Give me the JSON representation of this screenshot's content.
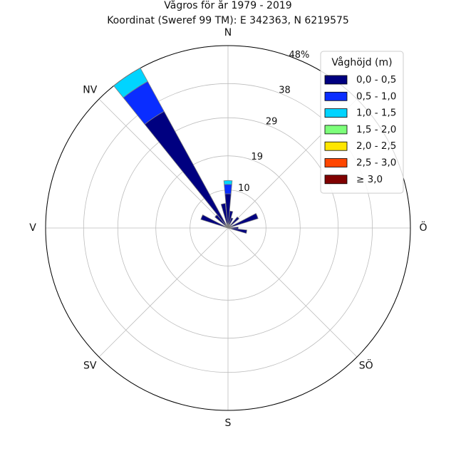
{
  "chart_data": {
    "type": "windrose",
    "title": "Vågros för år 1979 - 2019",
    "subtitle": "Koordinat (Sweref 99 TM): E 342363, N 6219575",
    "directions": [
      {
        "label": "N",
        "angle": 0
      },
      {
        "label": "NV",
        "angle": 315
      },
      {
        "label": "Ö",
        "angle": 90
      },
      {
        "label": "SÖ",
        "angle": 135
      },
      {
        "label": "S",
        "angle": 180
      },
      {
        "label": "SV",
        "angle": 225
      },
      {
        "label": "V",
        "angle": 270
      }
    ],
    "radial_ticks": [
      "10",
      "19",
      "29",
      "38",
      "48%"
    ],
    "radial_tick_values": [
      10,
      19,
      29,
      38,
      48
    ],
    "rmax": 48,
    "grid": true,
    "legend": {
      "title": "Våghöjd (m)",
      "position": "top-right",
      "entries": [
        {
          "label": "0,0 - 0,5",
          "color": "#000080"
        },
        {
          "label": "0,5 - 1,0",
          "color": "#0a2dff"
        },
        {
          "label": "1,0 - 1,5",
          "color": "#00d4ff"
        },
        {
          "label": "1,5 - 2,0",
          "color": "#7dff7a"
        },
        {
          "label": "2,0 - 2,5",
          "color": "#ffe600"
        },
        {
          "label": "2,5 - 3,0",
          "color": "#ff4600"
        },
        {
          "label": "≥ 3,0",
          "color": "#800000"
        }
      ]
    },
    "sector_width_deg": 11.25,
    "sectors": [
      {
        "direction_deg": 0,
        "cumulative": [
          9.0,
          11.5,
          12.5
        ]
      },
      {
        "direction_deg": 11.25,
        "cumulative": [
          4.5
        ]
      },
      {
        "direction_deg": 22.5,
        "cumulative": [
          2.8
        ]
      },
      {
        "direction_deg": 45,
        "cumulative": [
          3.8
        ]
      },
      {
        "direction_deg": 67.5,
        "cumulative": [
          8.3
        ]
      },
      {
        "direction_deg": 90,
        "cumulative": [
          2.7
        ]
      },
      {
        "direction_deg": 101.25,
        "cumulative": [
          5.0
        ]
      },
      {
        "direction_deg": 292.5,
        "cumulative": [
          7.5
        ]
      },
      {
        "direction_deg": 315,
        "cumulative": [
          4.5
        ]
      },
      {
        "direction_deg": 326.25,
        "cumulative": [
          35.0,
          44.0,
          48.0
        ]
      },
      {
        "direction_deg": 348.75,
        "cumulative": [
          6.5
        ]
      }
    ]
  }
}
